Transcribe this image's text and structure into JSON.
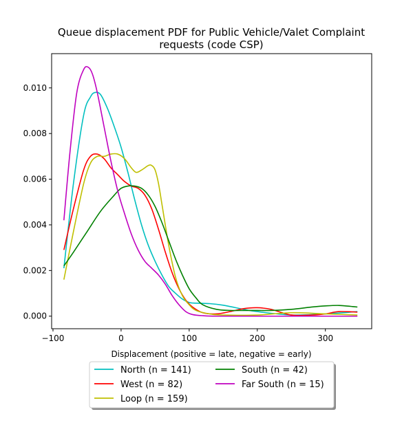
{
  "chart_data": {
    "type": "line",
    "title": "Queue displacement PDF for Public Vehicle/Valet Complaint requests (code CSP)",
    "title_lines": [
      "Queue displacement PDF for Public Vehicle/Valet Complaint",
      "requests (code CSP)"
    ],
    "xlabel": "Displacement (positive = late, negative = early)",
    "ylabel": "",
    "xlim": [
      -102,
      368
    ],
    "ylim": [
      -0.00055,
      0.0115
    ],
    "xticks": [
      -100,
      0,
      100,
      200,
      300
    ],
    "xtick_labels": [
      "−100",
      "0",
      "100",
      "200",
      "300"
    ],
    "yticks": [
      0.0,
      0.002,
      0.004,
      0.006,
      0.008,
      0.01
    ],
    "ytick_labels": [
      "0.000",
      "0.002",
      "0.004",
      "0.006",
      "0.008",
      "0.010"
    ],
    "grid": false,
    "legend_placement": "below",
    "series": [
      {
        "name": "North (n = 141)",
        "color": "#00bfbf",
        "x": [
          -84,
          -70,
          -55,
          -45,
          -38,
          -30,
          -20,
          -10,
          0,
          10,
          20,
          30,
          40,
          50,
          60,
          70,
          80,
          90,
          100,
          110,
          130,
          150,
          180,
          200,
          250,
          300,
          347
        ],
        "y": [
          0.0021,
          0.0058,
          0.0088,
          0.0096,
          0.0098,
          0.0097,
          0.0091,
          0.0083,
          0.0074,
          0.0063,
          0.0051,
          0.004,
          0.0031,
          0.0024,
          0.0018,
          0.0013,
          0.001,
          0.00075,
          0.0006,
          0.00057,
          0.00055,
          0.00048,
          0.0003,
          0.0002,
          5e-05,
          0.0001,
          0.0002
        ]
      },
      {
        "name": "West (n = 82)",
        "color": "#ff0000",
        "x": [
          -84,
          -70,
          -55,
          -45,
          -35,
          -25,
          -15,
          -5,
          5,
          15,
          25,
          35,
          45,
          55,
          65,
          75,
          85,
          95,
          105,
          120,
          140,
          160,
          180,
          200,
          220,
          250,
          280,
          300,
          320,
          347
        ],
        "y": [
          0.0029,
          0.0047,
          0.0064,
          0.007,
          0.0071,
          0.0069,
          0.0065,
          0.0062,
          0.0059,
          0.0057,
          0.0056,
          0.0053,
          0.0047,
          0.0038,
          0.0028,
          0.0019,
          0.0012,
          0.0007,
          0.0004,
          0.00015,
          0.0001,
          0.0002,
          0.00033,
          0.00037,
          0.0003,
          5e-05,
          5e-05,
          0.0001,
          0.0002,
          0.00018
        ]
      },
      {
        "name": "Loop (n = 159)",
        "color": "#bfbf00",
        "x": [
          -84,
          -70,
          -55,
          -45,
          -35,
          -25,
          -15,
          -5,
          5,
          15,
          22,
          30,
          40,
          45,
          50,
          55,
          60,
          70,
          80,
          90,
          100,
          110,
          130,
          150,
          200,
          250,
          300,
          347
        ],
        "y": [
          0.0016,
          0.0037,
          0.0058,
          0.0067,
          0.007,
          0.007,
          0.0071,
          0.0071,
          0.0069,
          0.0065,
          0.0063,
          0.0064,
          0.0066,
          0.0066,
          0.0064,
          0.0058,
          0.0049,
          0.0031,
          0.0017,
          0.0009,
          0.0005,
          0.00025,
          0.0001,
          5e-05,
          5e-05,
          0.00015,
          0.0001,
          5e-05
        ]
      },
      {
        "name": "South (n = 42)",
        "color": "#008000",
        "x": [
          -84,
          -70,
          -50,
          -30,
          -10,
          0,
          10,
          20,
          30,
          40,
          50,
          60,
          70,
          80,
          90,
          100,
          110,
          120,
          140,
          160,
          180,
          200,
          220,
          250,
          280,
          300,
          320,
          340,
          347
        ],
        "y": [
          0.0022,
          0.0028,
          0.0037,
          0.0046,
          0.0053,
          0.0056,
          0.0057,
          0.0057,
          0.0056,
          0.0053,
          0.0048,
          0.0041,
          0.0033,
          0.0025,
          0.0018,
          0.0012,
          0.0008,
          0.0005,
          0.0003,
          0.00025,
          0.00025,
          0.00025,
          0.00025,
          0.0003,
          0.0004,
          0.00045,
          0.00047,
          0.00042,
          0.0004
        ]
      },
      {
        "name": "Far South (n = 15)",
        "color": "#bf00bf",
        "x": [
          -84,
          -75,
          -65,
          -55,
          -48,
          -42,
          -35,
          -25,
          -15,
          -5,
          5,
          15,
          25,
          35,
          45,
          55,
          65,
          75,
          85,
          95,
          105,
          120,
          140,
          200,
          347
        ],
        "y": [
          0.0042,
          0.0072,
          0.0098,
          0.0108,
          0.0109,
          0.0106,
          0.0098,
          0.0083,
          0.0068,
          0.0055,
          0.0045,
          0.0036,
          0.0029,
          0.0024,
          0.0021,
          0.0018,
          0.0014,
          0.0009,
          0.0005,
          0.0002,
          7e-05,
          2e-05,
          0.0,
          0.0,
          0.0
        ]
      }
    ]
  }
}
